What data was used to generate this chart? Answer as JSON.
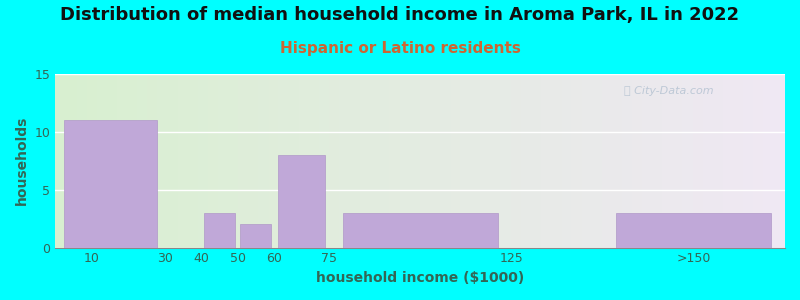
{
  "title": "Distribution of median household income in Aroma Park, IL in 2022",
  "subtitle": "Hispanic or Latino residents",
  "xlabel": "household income ($1000)",
  "ylabel": "households",
  "background_color": "#00FFFF",
  "plot_bg_gradient_left": "#d8f0d0",
  "plot_bg_gradient_right": "#f0e8f4",
  "bar_color": "#c0a8d8",
  "bar_edge_color": "#b098c8",
  "tick_labels": [
    "10",
    "30",
    "40",
    "50",
    "60",
    "75",
    "125",
    ">150"
  ],
  "tick_positions": [
    10,
    30,
    40,
    50,
    60,
    75,
    125,
    175
  ],
  "bar_left_edges": [
    0,
    30,
    40,
    50,
    60,
    75,
    125,
    150
  ],
  "bar_right_edges": [
    30,
    40,
    50,
    60,
    75,
    125,
    150,
    200
  ],
  "bar_values": [
    11,
    0,
    3,
    2,
    8,
    3,
    0,
    3
  ],
  "ylim": [
    0,
    15
  ],
  "yticks": [
    0,
    5,
    10,
    15
  ],
  "xlim": [
    0,
    200
  ],
  "title_fontsize": 13,
  "subtitle_fontsize": 11,
  "subtitle_color": "#cc6633",
  "title_color": "#111111",
  "axis_label_color": "#336655",
  "tick_color": "#336655",
  "watermark": "City-Data.com"
}
